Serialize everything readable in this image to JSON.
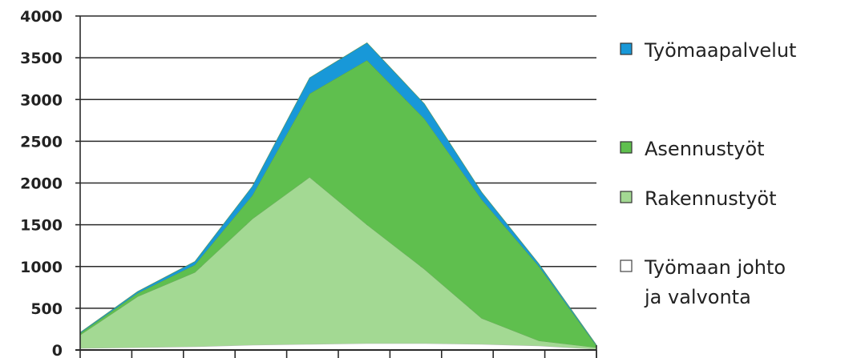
{
  "chart_data": {
    "type": "area",
    "stacked": true,
    "title": "",
    "xlabel": "",
    "ylabel": "",
    "ylim": [
      0,
      4000
    ],
    "y_ticks": [
      0,
      500,
      1000,
      1500,
      2000,
      2500,
      3000,
      3500,
      4000
    ],
    "y_tick_labels": [
      "0",
      "500",
      "1000",
      "1500",
      "2000",
      "2500",
      "3000",
      "3500",
      "4000"
    ],
    "x_count": 10,
    "x_tick_count": 10,
    "grid": "horizontal",
    "legend_position": "right",
    "series": [
      {
        "name": "Työmaan johto ja valvonta",
        "name_lines": [
          "Työmaan johto",
          "ja valvonta"
        ],
        "color": "#ffffff",
        "values": [
          20,
          30,
          40,
          60,
          70,
          80,
          80,
          70,
          50,
          10
        ]
      },
      {
        "name": "Rakennustyöt",
        "name_lines": [
          "Rakennustyöt"
        ],
        "color": "#a3d993",
        "values": [
          160,
          610,
          890,
          1510,
          2000,
          1420,
          890,
          310,
          60,
          20
        ]
      },
      {
        "name": "Asennustyöt",
        "name_lines": [
          "Asennustyöt"
        ],
        "color": "#5fbf4e",
        "values": [
          20,
          40,
          90,
          280,
          1000,
          1970,
          1800,
          1420,
          890,
          20
        ]
      },
      {
        "name": "Työmaapalvelut",
        "name_lines": [
          "Työmaapalvelut"
        ],
        "color": "#1898d8",
        "values": [
          10,
          20,
          40,
          110,
          190,
          210,
          180,
          90,
          30,
          10
        ]
      }
    ]
  }
}
